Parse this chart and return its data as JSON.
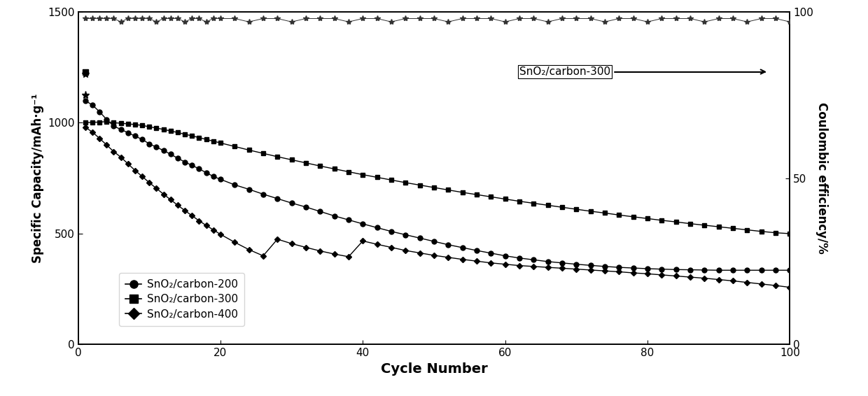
{
  "title": "",
  "xlabel": "Cycle Number",
  "ylabel_left": "Specific Capacity/mAh·g⁻¹",
  "ylabel_right": "Coulombic efficiency/%",
  "xlim": [
    0,
    100
  ],
  "ylim_left": [
    0,
    1500
  ],
  "ylim_right": [
    0,
    100
  ],
  "yticks_left": [
    0,
    500,
    1000,
    1500
  ],
  "yticks_right": [
    0,
    50,
    100
  ],
  "xticks": [
    0,
    20,
    40,
    60,
    80,
    100
  ],
  "sno2_200_label": "SnO₂/carbon-200",
  "sno2_300_label": "SnO₂/carbon-300",
  "sno2_400_label": "SnO₂/carbon-400",
  "annotation_text": "SnO₂/carbon-300",
  "background_color": "#ffffff",
  "x200": [
    1,
    2,
    3,
    4,
    5,
    6,
    7,
    8,
    9,
    10,
    11,
    12,
    13,
    14,
    15,
    16,
    17,
    18,
    19,
    20,
    22,
    24,
    26,
    28,
    30,
    32,
    34,
    36,
    38,
    40,
    42,
    44,
    46,
    48,
    50,
    52,
    54,
    56,
    58,
    60,
    62,
    64,
    66,
    68,
    70,
    72,
    74,
    76,
    78,
    80,
    82,
    84,
    86,
    88,
    90,
    92,
    94,
    96,
    98,
    100
  ],
  "y200": [
    1100,
    1080,
    1050,
    1015,
    985,
    970,
    955,
    940,
    925,
    905,
    890,
    875,
    858,
    840,
    823,
    808,
    792,
    775,
    758,
    745,
    720,
    700,
    678,
    658,
    638,
    620,
    600,
    580,
    562,
    544,
    527,
    510,
    495,
    480,
    465,
    450,
    437,
    424,
    412,
    400,
    390,
    382,
    374,
    368,
    362,
    357,
    352,
    348,
    345,
    342,
    340,
    338,
    337,
    336,
    335,
    335,
    335,
    335,
    335,
    335
  ],
  "x300": [
    1,
    2,
    3,
    4,
    5,
    6,
    7,
    8,
    9,
    10,
    11,
    12,
    13,
    14,
    15,
    16,
    17,
    18,
    19,
    20,
    22,
    24,
    26,
    28,
    30,
    32,
    34,
    36,
    38,
    40,
    42,
    44,
    46,
    48,
    50,
    52,
    54,
    56,
    58,
    60,
    62,
    64,
    66,
    68,
    70,
    72,
    74,
    76,
    78,
    80,
    82,
    84,
    86,
    88,
    90,
    92,
    94,
    96,
    98,
    100
  ],
  "y300": [
    1000,
    1002,
    1003,
    1005,
    1000,
    998,
    995,
    992,
    988,
    982,
    976,
    970,
    963,
    956,
    948,
    941,
    933,
    925,
    917,
    909,
    893,
    877,
    862,
    847,
    833,
    819,
    805,
    792,
    779,
    766,
    754,
    742,
    730,
    719,
    708,
    697,
    686,
    676,
    666,
    656,
    646,
    637,
    628,
    619,
    610,
    601,
    593,
    584,
    576,
    568,
    560,
    553,
    545,
    538,
    531,
    524,
    517,
    510,
    504,
    500
  ],
  "x400": [
    1,
    2,
    3,
    4,
    5,
    6,
    7,
    8,
    9,
    10,
    11,
    12,
    13,
    14,
    15,
    16,
    17,
    18,
    19,
    20,
    22,
    24,
    26,
    28,
    30,
    32,
    34,
    36,
    38,
    40,
    42,
    44,
    46,
    48,
    50,
    52,
    54,
    56,
    58,
    60,
    62,
    64,
    66,
    68,
    70,
    72,
    74,
    76,
    78,
    80,
    82,
    84,
    86,
    88,
    90,
    92,
    94,
    96,
    98,
    100
  ],
  "y400": [
    980,
    958,
    930,
    900,
    870,
    845,
    815,
    785,
    758,
    730,
    704,
    678,
    653,
    628,
    604,
    581,
    558,
    537,
    517,
    497,
    461,
    428,
    400,
    475,
    455,
    438,
    422,
    408,
    396,
    467,
    452,
    438,
    424,
    413,
    402,
    393,
    384,
    376,
    368,
    362,
    356,
    352,
    348,
    344,
    340,
    336,
    332,
    328,
    323,
    319,
    314,
    309,
    304,
    299,
    293,
    287,
    280,
    273,
    266,
    258
  ],
  "ce_x": [
    1,
    2,
    3,
    4,
    5,
    6,
    7,
    8,
    9,
    10,
    11,
    12,
    13,
    14,
    15,
    16,
    17,
    18,
    19,
    20,
    22,
    24,
    26,
    28,
    30,
    32,
    34,
    36,
    38,
    40,
    42,
    44,
    46,
    48,
    50,
    52,
    54,
    56,
    58,
    60,
    62,
    64,
    66,
    68,
    70,
    72,
    74,
    76,
    78,
    80,
    82,
    84,
    86,
    88,
    90,
    92,
    94,
    96,
    98,
    100
  ],
  "ce_y": [
    98,
    98,
    98,
    98,
    98,
    97,
    98,
    98,
    98,
    98,
    97,
    98,
    98,
    98,
    97,
    98,
    98,
    97,
    98,
    98,
    98,
    97,
    98,
    98,
    97,
    98,
    98,
    98,
    97,
    98,
    98,
    97,
    98,
    98,
    98,
    97,
    98,
    98,
    98,
    97,
    98,
    98,
    97,
    98,
    98,
    98,
    97,
    98,
    98,
    97,
    98,
    98,
    98,
    97,
    98,
    98,
    97,
    98,
    98,
    97
  ],
  "ce_initial_x": [
    1
  ],
  "ce_initial_y": [
    75
  ]
}
